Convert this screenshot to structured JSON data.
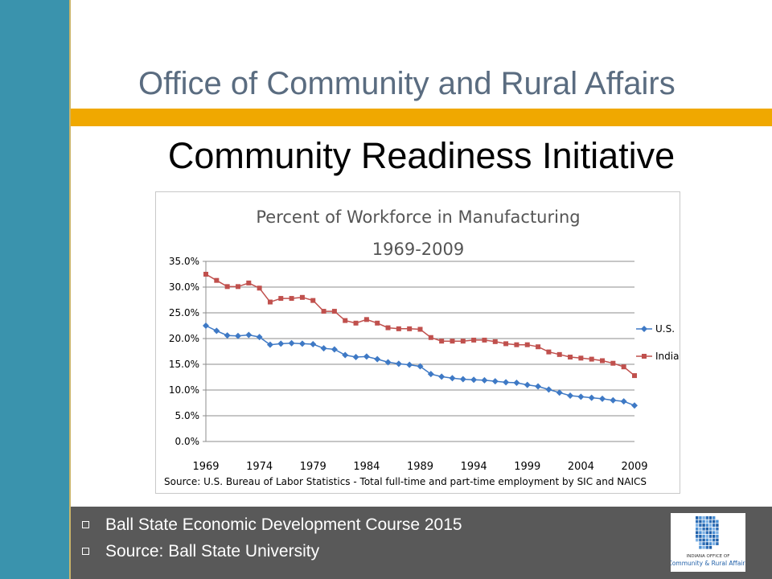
{
  "slide": {
    "org_title": "Office of Community and Rural Affairs",
    "title": "Community Readiness Initiative"
  },
  "bullets": [
    "Ball State Economic Development Course 2015",
    "Source: Ball State University"
  ],
  "logo": {
    "text_line1": "INDIANA OFFICE OF",
    "text_line2": "Community & Rural Affairs"
  },
  "colors": {
    "us": "#3e79c5",
    "indiana": "#c0504d",
    "accent": "#f0a800",
    "band": "#3a93ad"
  },
  "chart_data": {
    "type": "line",
    "title": "Percent of Workforce in Manufacturing",
    "subtitle": "1969-2009",
    "source": "Source: U.S. Bureau of Labor Statistics - Total full-time and part-time employment    by SIC and NAICS",
    "x_tick_labels": [
      "1969",
      "1974",
      "1979",
      "1984",
      "1989",
      "1994",
      "1999",
      "2004",
      "2009"
    ],
    "y_tick_labels": [
      "0.0%",
      "5.0%",
      "10.0%",
      "15.0%",
      "20.0%",
      "25.0%",
      "30.0%",
      "35.0%"
    ],
    "ylim": [
      0,
      35
    ],
    "xlim": [
      1969,
      2009
    ],
    "grid": true,
    "legend_position": "right",
    "x": [
      1969,
      1970,
      1971,
      1972,
      1973,
      1974,
      1975,
      1976,
      1977,
      1978,
      1979,
      1980,
      1981,
      1982,
      1983,
      1984,
      1985,
      1986,
      1987,
      1988,
      1989,
      1990,
      1991,
      1992,
      1993,
      1994,
      1995,
      1996,
      1997,
      1998,
      1999,
      2000,
      2001,
      2002,
      2003,
      2004,
      2005,
      2006,
      2007,
      2008,
      2009
    ],
    "series": [
      {
        "name": "U.S.",
        "values": [
          22.5,
          21.5,
          20.6,
          20.5,
          20.7,
          20.3,
          18.8,
          19.0,
          19.1,
          19.0,
          18.9,
          18.1,
          17.9,
          16.8,
          16.4,
          16.5,
          16.0,
          15.4,
          15.1,
          14.9,
          14.6,
          13.1,
          12.6,
          12.3,
          12.1,
          12.0,
          11.9,
          11.7,
          11.5,
          11.4,
          11.0,
          10.7,
          10.1,
          9.5,
          8.9,
          8.7,
          8.5,
          8.3,
          8.0,
          7.8,
          7.0
        ]
      },
      {
        "name": "Indiana",
        "values": [
          32.5,
          31.3,
          30.1,
          30.1,
          30.8,
          29.8,
          27.1,
          27.8,
          27.8,
          28.0,
          27.4,
          25.3,
          25.3,
          23.5,
          23.0,
          23.7,
          23.0,
          22.1,
          21.9,
          21.9,
          21.8,
          20.2,
          19.5,
          19.5,
          19.5,
          19.7,
          19.7,
          19.4,
          19.0,
          18.8,
          18.8,
          18.4,
          17.4,
          16.9,
          16.4,
          16.2,
          16.0,
          15.7,
          15.2,
          14.5,
          12.8
        ]
      }
    ]
  }
}
